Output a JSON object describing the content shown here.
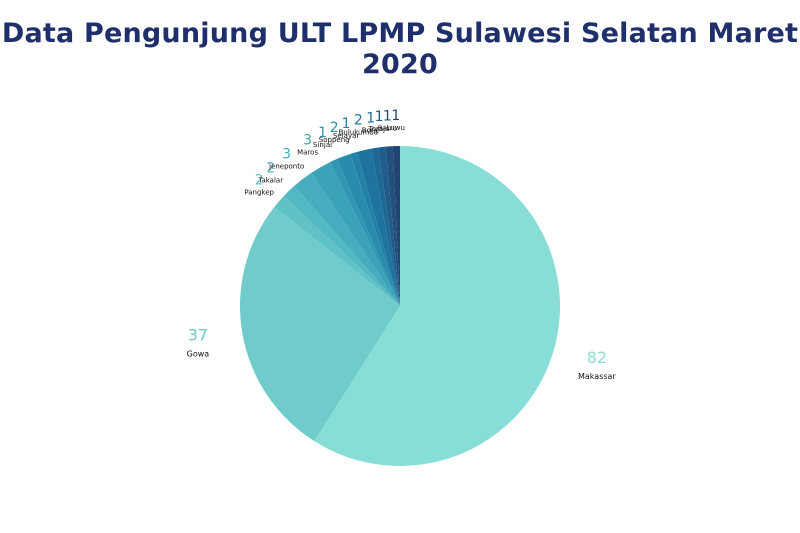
{
  "chart_data": {
    "type": "pie",
    "title": "Data Pengunjung ULT LPMP Sulawesi Selatan Maret 2020",
    "slices": [
      {
        "label": "Makassar",
        "value": 82,
        "color": "#88ded6"
      },
      {
        "label": "Gowa",
        "value": 37,
        "color": "#70cccb"
      },
      {
        "label": "Pangkep",
        "value": 2,
        "color": "#5fc2c6"
      },
      {
        "label": "Takalar",
        "value": 2,
        "color": "#54b8c2"
      },
      {
        "label": "Jeneponto",
        "value": 3,
        "color": "#47acbe"
      },
      {
        "label": "Maros",
        "value": 3,
        "color": "#3ba2b9"
      },
      {
        "label": "Sinjai",
        "value": 1,
        "color": "#3196b3"
      },
      {
        "label": "Soppeng",
        "value": 2,
        "color": "#2a8cad"
      },
      {
        "label": "Selayar",
        "value": 1,
        "color": "#2380a6"
      },
      {
        "label": "Bulukumba",
        "value": 2,
        "color": "#1e749e"
      },
      {
        "label": "Bone",
        "value": 1,
        "color": "#1e6894"
      },
      {
        "label": "Toraja",
        "value": 1,
        "color": "#1f5c89"
      },
      {
        "label": "Barru",
        "value": 1,
        "color": "#21507d"
      },
      {
        "label": "Luwu",
        "value": 1,
        "color": "#234472"
      }
    ]
  }
}
